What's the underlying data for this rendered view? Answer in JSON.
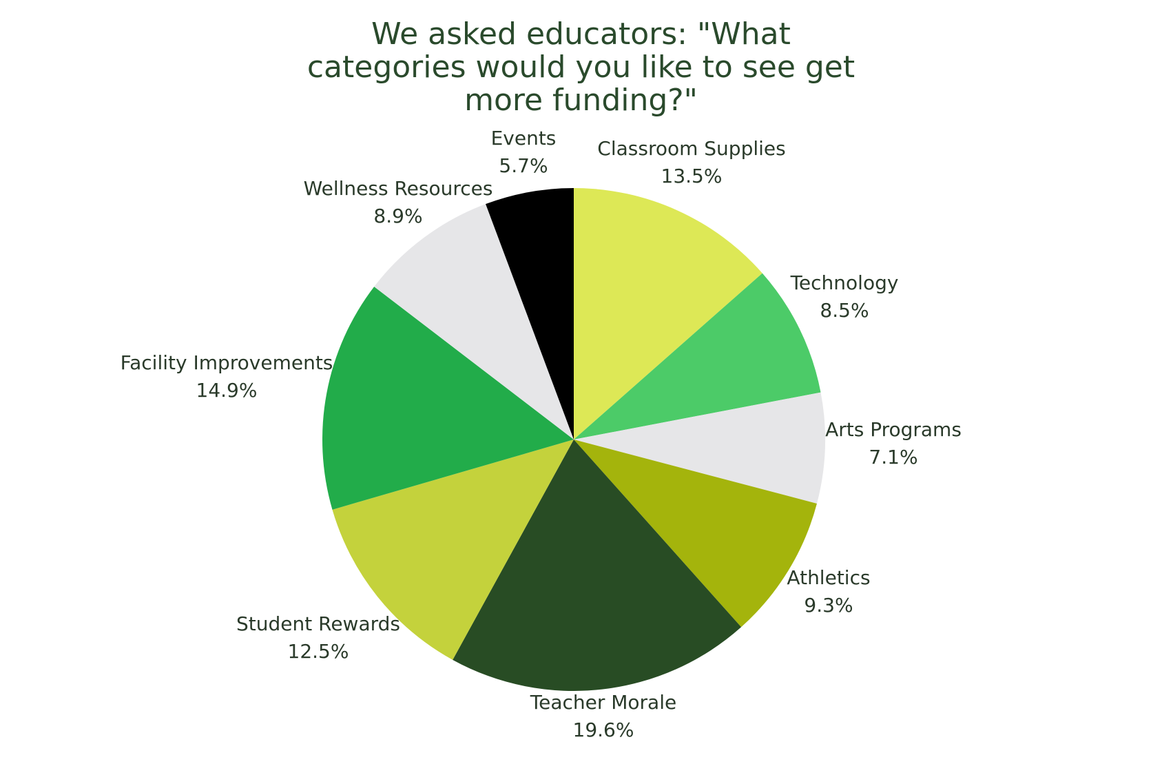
{
  "title_lines": [
    "We asked educators: \"What",
    "categories would you like to see get",
    "more funding?\""
  ],
  "chart_data": {
    "type": "pie",
    "title": "We asked educators: \"What categories would you like to see get more funding?\"",
    "start": "12 o'clock, clockwise",
    "legend": "none (labels next to slices)",
    "slices": [
      {
        "label": "Classroom Supplies",
        "value": 13.5,
        "value_label": "13.5%",
        "color": "#dde856"
      },
      {
        "label": "Technology",
        "value": 8.5,
        "value_label": "8.5%",
        "color": "#4ccb68"
      },
      {
        "label": "Arts Programs",
        "value": 7.1,
        "value_label": "7.1%",
        "color": "#e6e6e8"
      },
      {
        "label": "Athletics",
        "value": 9.3,
        "value_label": "9.3%",
        "color": "#a4b40c"
      },
      {
        "label": "Teacher Morale",
        "value": 19.6,
        "value_label": "19.6%",
        "color": "#284c24"
      },
      {
        "label": "Student Rewards",
        "value": 12.5,
        "value_label": "12.5%",
        "color": "#c4d23c"
      },
      {
        "label": "Facility Improvements",
        "value": 14.9,
        "value_label": "14.9%",
        "color": "#22ac4a"
      },
      {
        "label": "Wellness Resources",
        "value": 8.9,
        "value_label": "8.9%",
        "color": "#e6e6e8"
      },
      {
        "label": "Events",
        "value": 5.7,
        "value_label": "5.7%",
        "color": "#000000"
      }
    ]
  }
}
